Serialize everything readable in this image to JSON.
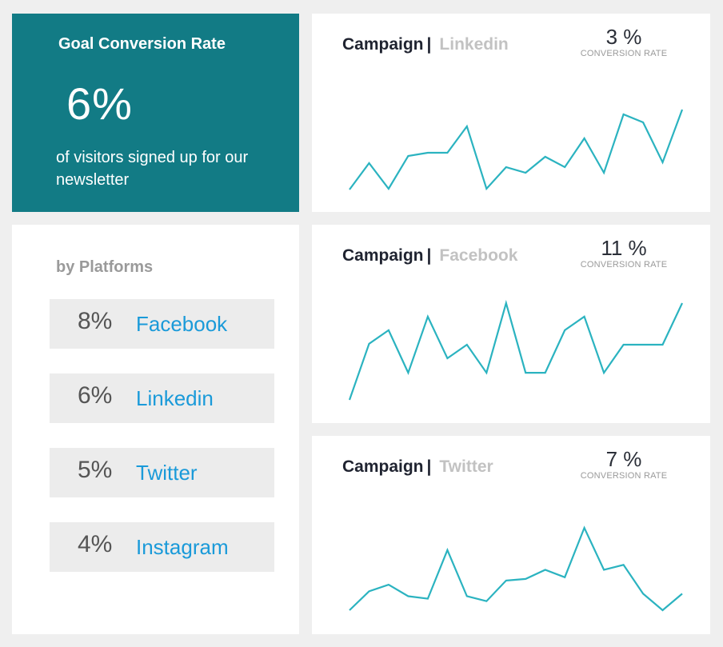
{
  "goal": {
    "title": "Goal Conversion Rate",
    "value": "6%",
    "description": "of visitors signed up for our newsletter",
    "color": "#127b85"
  },
  "platforms": {
    "title": "by Platforms",
    "items": [
      {
        "pct": "8%",
        "name": "Facebook"
      },
      {
        "pct": "6%",
        "name": "Linkedin"
      },
      {
        "pct": "5%",
        "name": "Twitter"
      },
      {
        "pct": "4%",
        "name": "Instagram"
      }
    ],
    "link_color": "#1a9ad9"
  },
  "campaigns": [
    {
      "label": "Campaign",
      "separator": "|",
      "platform": "Linkedin",
      "rate": "3 %",
      "rate_label": "CONVERSION RATE"
    },
    {
      "label": "Campaign",
      "separator": "|",
      "platform": "Facebook",
      "rate": "11 %",
      "rate_label": "CONVERSION RATE"
    },
    {
      "label": "Campaign",
      "separator": "|",
      "platform": "Twitter",
      "rate": "7 %",
      "rate_label": "CONVERSION RATE"
    }
  ],
  "chart_data": [
    {
      "type": "line",
      "title": "Campaign | Linkedin",
      "series": [
        {
          "name": "Linkedin",
          "values": [
            0,
            33,
            1,
            42,
            46,
            46,
            79,
            1,
            28,
            21,
            41,
            28,
            64,
            21,
            94,
            84,
            34,
            100
          ]
        }
      ],
      "x": [
        1,
        2,
        3,
        4,
        5,
        6,
        7,
        8,
        9,
        10,
        11,
        12,
        13,
        14,
        15,
        16,
        17,
        18
      ],
      "xlabel": "",
      "ylabel": "",
      "grid": false,
      "line_color": "#2bb3c0",
      "annotation": "3 % CONVERSION RATE"
    },
    {
      "type": "line",
      "title": "Campaign | Facebook",
      "series": [
        {
          "name": "Facebook",
          "values": [
            0,
            58,
            72,
            28,
            86,
            43,
            57,
            28,
            100,
            28,
            28,
            72,
            86,
            28,
            57,
            57,
            57,
            100
          ]
        }
      ],
      "x": [
        1,
        2,
        3,
        4,
        5,
        6,
        7,
        8,
        9,
        10,
        11,
        12,
        13,
        14,
        15,
        16,
        17,
        18
      ],
      "xlabel": "",
      "ylabel": "",
      "grid": false,
      "line_color": "#2bb3c0",
      "annotation": "11 % CONVERSION RATE"
    },
    {
      "type": "line",
      "title": "Campaign | Twitter",
      "series": [
        {
          "name": "Twitter",
          "values": [
            0,
            23,
            31,
            17,
            14,
            73,
            17,
            11,
            36,
            38,
            49,
            40,
            100,
            49,
            55,
            20,
            0,
            20
          ]
        }
      ],
      "x": [
        1,
        2,
        3,
        4,
        5,
        6,
        7,
        8,
        9,
        10,
        11,
        12,
        13,
        14,
        15,
        16,
        17,
        18
      ],
      "xlabel": "",
      "ylabel": "",
      "grid": false,
      "line_color": "#2bb3c0",
      "annotation": "7 % CONVERSION RATE"
    }
  ]
}
